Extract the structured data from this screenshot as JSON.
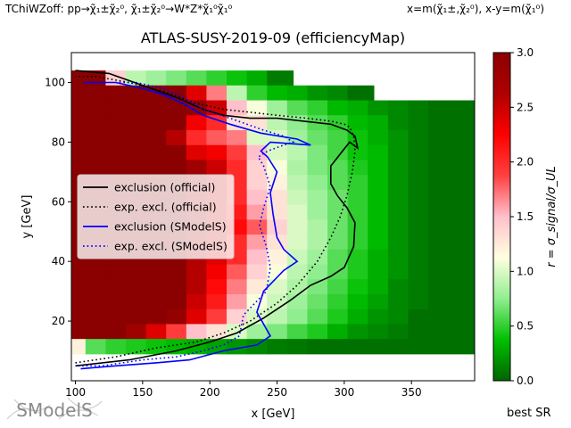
{
  "header": {
    "left": "TChiWZoff: pp→χ̃₁±χ̃₂⁰, χ̃₁±χ̃₂⁰→W*Z*χ̃₁⁰χ̃₁⁰",
    "right": "x=m(χ̃₁±,χ̃₂⁰), x-y=m(χ̃₁⁰)"
  },
  "logo_text": "SModelS",
  "best_sr_label": "best SR",
  "chart_data": {
    "type": "heatmap",
    "title": "ATLAS-SUSY-2019-09 (efficiencyMap)",
    "xlabel": "x [GeV]",
    "ylabel": "y [GeV]",
    "xlim": [
      97,
      397
    ],
    "ylim": [
      0,
      110
    ],
    "xticks": [
      100,
      150,
      200,
      250,
      300,
      350
    ],
    "yticks": [
      20,
      40,
      60,
      80,
      100
    ],
    "colorbar": {
      "label": "r = σ_signal/σ_UL",
      "range": [
        0,
        3
      ],
      "ticks": [
        0.0,
        0.5,
        1.0,
        1.5,
        2.0,
        2.5,
        3.0
      ],
      "colormap": [
        "#006400",
        "#00c000",
        "#90ee90",
        "#ffffe0",
        "#ffc0cb",
        "#ff4040",
        "#ff0000",
        "#b00000",
        "#8b0000"
      ]
    },
    "grid": {
      "x0": 100,
      "dx": 15,
      "y0": 5,
      "dy": 5,
      "rows": [
        [
          3,
          3,
          1.4,
          0.9,
          0.8,
          0.7,
          0.6,
          0.5,
          0.4,
          0.3,
          0.1,
          0.05,
          0.05,
          0.05,
          0.05,
          0.05,
          0.05,
          0.05,
          0.05,
          0.05
        ],
        [
          3,
          3,
          3,
          3,
          3,
          3,
          2.4,
          1.7,
          0.9,
          0.5,
          0.35,
          0.3,
          0.2,
          0.15,
          0.05,
          0.05,
          0.05,
          0.05,
          0.05,
          0.05
        ],
        [
          3,
          3,
          3,
          3,
          3,
          3,
          2.9,
          2.5,
          1.5,
          1.1,
          0.8,
          0.6,
          0.5,
          0.35,
          0.3,
          0.2,
          0.15,
          0.1,
          0.05,
          0.05
        ],
        [
          3,
          3,
          3,
          3,
          3,
          3,
          2.3,
          2.0,
          1.3,
          1.3,
          0.9,
          0.75,
          0.6,
          0.5,
          0.35,
          0.3,
          0.15,
          0.1,
          0.05,
          0.05
        ],
        [
          3,
          3,
          3,
          3,
          3,
          2.6,
          2.0,
          1.8,
          1.7,
          1.0,
          1.0,
          0.8,
          0.65,
          0.55,
          0.4,
          0.3,
          0.2,
          0.1,
          0.05,
          0.05
        ],
        [
          3,
          3,
          3,
          3,
          3,
          3,
          2.4,
          2.3,
          1.9,
          1.5,
          1.0,
          0.9,
          0.7,
          0.55,
          0.4,
          0.35,
          0.2,
          0.1,
          0.05,
          0.05
        ],
        [
          3,
          3,
          3,
          3,
          3,
          3,
          2.8,
          2.5,
          2.0,
          1.4,
          1.1,
          0.85,
          0.7,
          0.6,
          0.45,
          0.35,
          0.2,
          0.1,
          0.05,
          0.05
        ],
        [
          3,
          3,
          3,
          3,
          3,
          3,
          2.8,
          2.5,
          2.0,
          1.4,
          1.2,
          0.9,
          0.75,
          0.6,
          0.5,
          0.35,
          0.2,
          0.1,
          0.05,
          0.05
        ],
        [
          3,
          3,
          3,
          3,
          3,
          3,
          2.7,
          2.5,
          2.0,
          1.5,
          1.3,
          0.95,
          0.8,
          0.65,
          0.5,
          0.35,
          0.2,
          0.1,
          0.05,
          0.05
        ],
        [
          3,
          3,
          3,
          3,
          3,
          3,
          2.8,
          2.5,
          2.1,
          1.6,
          1.3,
          1.0,
          0.8,
          0.65,
          0.5,
          0.35,
          0.2,
          0.1,
          0.05,
          0.05
        ],
        [
          3,
          3,
          3,
          3,
          3,
          3,
          2.8,
          2.5,
          2.2,
          1.8,
          1.4,
          1.0,
          0.85,
          0.65,
          0.5,
          0.35,
          0.2,
          0.1,
          0.05,
          0.05
        ],
        [
          3,
          3,
          3,
          3,
          3,
          3,
          2.7,
          2.5,
          2.0,
          1.6,
          1.3,
          1.0,
          0.85,
          0.65,
          0.5,
          0.35,
          0.2,
          0.1,
          0.05,
          0.05
        ],
        [
          3,
          3,
          3,
          3,
          3,
          3,
          2.6,
          2.4,
          2.0,
          1.5,
          1.2,
          0.95,
          0.8,
          0.6,
          0.45,
          0.3,
          0.2,
          0.1,
          0.05,
          0.05
        ],
        [
          3,
          3,
          3,
          3,
          3,
          3,
          2.6,
          2.3,
          1.8,
          1.4,
          1.1,
          0.9,
          0.75,
          0.6,
          0.45,
          0.3,
          0.2,
          0.1,
          0.05,
          0.05
        ],
        [
          3,
          3,
          3,
          3,
          3,
          3,
          2.6,
          2.2,
          1.7,
          1.25,
          1.0,
          0.85,
          0.7,
          0.55,
          0.4,
          0.3,
          0.15,
          0.1,
          0.05,
          0.05
        ],
        [
          3,
          3,
          3,
          3,
          3,
          3,
          2.5,
          2.1,
          1.6,
          1.1,
          0.95,
          0.8,
          0.65,
          0.5,
          0.35,
          0.25,
          0.15,
          0.1,
          0.05,
          0.05
        ],
        [
          3,
          3,
          3,
          3,
          3,
          2.9,
          2.4,
          1.9,
          1.4,
          1.0,
          0.9,
          0.75,
          0.6,
          0.45,
          0.3,
          0.2,
          0.15,
          0.05,
          0.05,
          0.05
        ],
        [
          3,
          3,
          3,
          2.8,
          2.4,
          1.9,
          1.5,
          1.3,
          1.0,
          0.8,
          0.7,
          0.55,
          0.45,
          0.3,
          0.2,
          0.15,
          0.1,
          0.05,
          0.05,
          0.05
        ],
        [
          1.2,
          0.6,
          0.5,
          0.45,
          0.4,
          0.35,
          0.3,
          0.25,
          0.2,
          0.15,
          0.1,
          0.08,
          0.05,
          0.05,
          0.05,
          0.05,
          0.05,
          0.05,
          0.05,
          0.05
        ]
      ],
      "row_end_x": [
        262,
        322,
        397,
        397,
        397,
        397,
        397,
        397,
        397,
        397,
        397,
        397,
        397,
        397,
        397,
        397,
        397,
        397,
        397
      ]
    },
    "series": [
      {
        "name": "exclusion (official)",
        "color": "#000000",
        "dash": "solid",
        "x": [
          100,
          140,
          175,
          200,
          220,
          240,
          260,
          275,
          290,
          300,
          307,
          308,
          302,
          295,
          290,
          290,
          297,
          304,
          310,
          308,
          302,
          290,
          270,
          250,
          230,
          210,
          195,
          175,
          150,
          125,
          100
        ],
        "y": [
          5,
          7,
          10,
          13,
          16,
          21,
          27,
          32,
          35,
          38,
          45,
          53,
          58,
          62,
          66,
          72,
          76,
          80,
          78,
          82,
          84,
          86,
          87,
          88,
          88,
          89,
          91,
          95,
          99,
          103,
          104
        ]
      },
      {
        "name": "exp. excl. (official)",
        "color": "#000000",
        "dash": "dotted",
        "x": [
          100,
          130,
          160,
          190,
          210,
          230,
          250,
          265,
          280,
          290,
          297,
          302,
          306,
          308,
          307,
          304,
          300,
          290,
          272,
          250,
          230,
          210,
          190,
          165,
          140,
          115,
          100
        ],
        "y": [
          6,
          8,
          11,
          13,
          16,
          20,
          26,
          32,
          40,
          48,
          55,
          62,
          70,
          77,
          82,
          85,
          86,
          87,
          88,
          89,
          90,
          91,
          93,
          97,
          100,
          102,
          102
        ]
      },
      {
        "name": "exclusion (SModelS)",
        "color": "#0000ff",
        "dash": "solid",
        "x": [
          104,
          130,
          160,
          185,
          210,
          235,
          245,
          235,
          240,
          255,
          265,
          255,
          250,
          247,
          245,
          250,
          243,
          238,
          245,
          275,
          265,
          238,
          215,
          195,
          180,
          165,
          150,
          130,
          106
        ],
        "y": [
          4,
          5,
          6,
          7,
          10,
          12,
          15,
          23,
          30,
          37,
          40,
          44,
          48,
          56,
          63,
          70,
          75,
          77,
          80,
          79,
          81,
          83,
          86,
          89,
          93,
          96,
          98,
          100,
          100
        ]
      },
      {
        "name": "exp. excl. (SModelS)",
        "color": "#0000ff",
        "dash": "dotted",
        "x": [
          102,
          120,
          150,
          175,
          195,
          210,
          222,
          225,
          242,
          245,
          242,
          237,
          240,
          245,
          240,
          236,
          243,
          255,
          262,
          255,
          240,
          215,
          195,
          180,
          165,
          145,
          130
        ],
        "y": [
          5,
          5,
          7,
          8,
          10,
          12,
          15,
          22,
          30,
          38,
          45,
          52,
          58,
          65,
          72,
          75,
          77,
          79,
          80,
          82,
          84,
          88,
          91,
          95,
          98,
          100,
          100
        ]
      }
    ],
    "legend": {
      "placement": "center-left"
    }
  }
}
